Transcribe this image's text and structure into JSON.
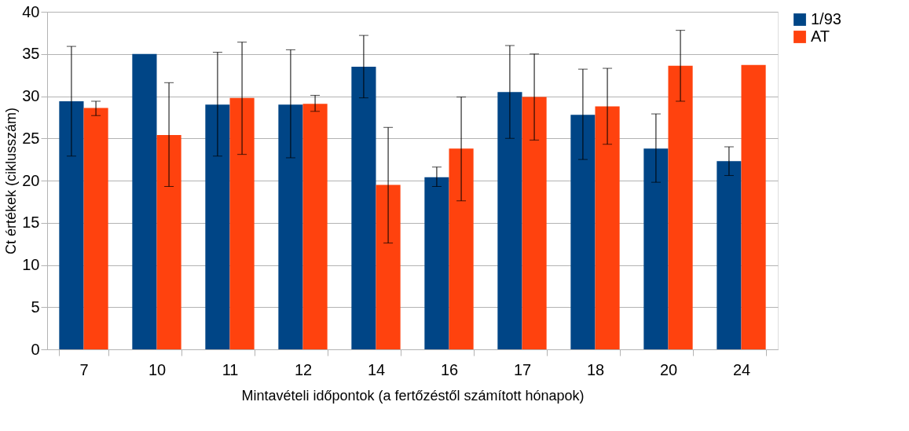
{
  "chart_data": {
    "type": "bar",
    "xlabel": "Mintavételi időpontok (a fertőzéstől számított hónapok)",
    "ylabel": "Ct értékek (ciklusszám)",
    "categories": [
      "7",
      "10",
      "11",
      "12",
      "14",
      "16",
      "17",
      "18",
      "20",
      "24"
    ],
    "series": [
      {
        "name": "1/93",
        "color": "#004586",
        "values": [
          29.4,
          35.0,
          29.0,
          29.0,
          33.5,
          20.4,
          30.5,
          27.8,
          23.8,
          22.3
        ],
        "errors": [
          [
            22.9,
            35.9
          ],
          null,
          [
            22.9,
            35.2
          ],
          [
            22.7,
            35.5
          ],
          [
            29.8,
            37.2
          ],
          [
            19.3,
            21.6
          ],
          [
            25.0,
            36.0
          ],
          [
            22.5,
            33.2
          ],
          [
            19.8,
            27.9
          ],
          [
            20.6,
            24.0
          ]
        ]
      },
      {
        "name": "AT",
        "color": "#ff420e",
        "values": [
          28.6,
          25.4,
          29.8,
          29.1,
          19.5,
          23.8,
          29.9,
          28.8,
          33.6,
          33.7
        ],
        "errors": [
          [
            27.7,
            29.4
          ],
          [
            19.3,
            31.6
          ],
          [
            23.1,
            36.4
          ],
          [
            28.2,
            30.1
          ],
          [
            12.6,
            26.3
          ],
          [
            17.6,
            29.9
          ],
          [
            24.8,
            35.0
          ],
          [
            24.3,
            33.3
          ],
          [
            29.4,
            37.8
          ],
          null
        ]
      }
    ],
    "ylim": [
      0,
      40
    ],
    "yticks": [
      0,
      5,
      10,
      15,
      20,
      25,
      30,
      35,
      40
    ],
    "grid": "y",
    "legend": "right"
  }
}
